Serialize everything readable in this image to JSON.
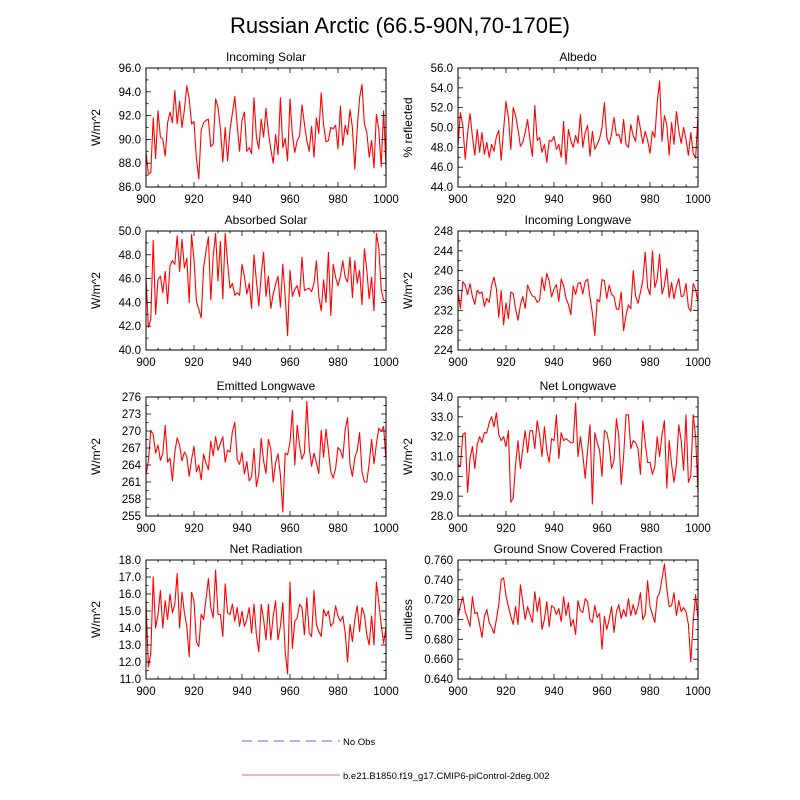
{
  "title": "Russian Arctic (66.5-90N,70-170E)",
  "colors": {
    "model_line": "#ff0000",
    "obs_line": "#9999ee",
    "axis": "#000000"
  },
  "legend": {
    "entries": [
      {
        "label": "No Obs",
        "style": "dashed",
        "color": "#9999ee"
      },
      {
        "label": "b.e21.B1850.f19_g17.CMIP6-piControl-2deg.002",
        "style": "solid",
        "color": "#ff9a9a"
      }
    ]
  },
  "chart_data": [
    {
      "type": "line",
      "title": "Incoming Solar",
      "ylabel": "W/m^2",
      "xlabel": "",
      "xlim": [
        900,
        1000
      ],
      "ylim": [
        86,
        96
      ],
      "xticks": [
        "900",
        "920",
        "940",
        "960",
        "980",
        "1000"
      ],
      "yticks": [
        "86.0",
        "88.0",
        "90.0",
        "92.0",
        "94.0",
        "96.0"
      ],
      "x_start": 900,
      "values": [
        88.9,
        87.1,
        87.2,
        91.8,
        88.4,
        92.4,
        90.2,
        90.0,
        88.6,
        91.4,
        92.3,
        91.4,
        94.1,
        91.3,
        93.2,
        91.0,
        92.5,
        94.5,
        93.4,
        91.3,
        91.5,
        88.4,
        86.7,
        90.8,
        91.4,
        91.6,
        91.7,
        89.4,
        89.6,
        93.4,
        92.7,
        90.9,
        88.1,
        91.0,
        88.2,
        90.8,
        92.2,
        93.6,
        91.2,
        89.0,
        91.6,
        92.3,
        89.0,
        89.3,
        88.8,
        93.5,
        90.2,
        89.2,
        91.7,
        90.2,
        92.6,
        90.6,
        89.2,
        88.0,
        90.4,
        88.7,
        93.5,
        89.3,
        90.1,
        88.2,
        93.4,
        90.4,
        88.9,
        89.9,
        90.3,
        92.9,
        91.3,
        89.9,
        89.0,
        91.1,
        88.5,
        91.8,
        90.5,
        93.9,
        91.2,
        89.8,
        89.9,
        91.0,
        90.9,
        91.2,
        89.2,
        92.8,
        89.5,
        91.2,
        90.4,
        92.5,
        91.0,
        87.5,
        90.9,
        93.5,
        94.6,
        91.3,
        90.6,
        88.5,
        89.9,
        87.6,
        92.1,
        90.8,
        87.7,
        92.4,
        87.7
      ]
    },
    {
      "type": "line",
      "title": "Albedo",
      "ylabel": "% reflected",
      "xlabel": "",
      "xlim": [
        900,
        1000
      ],
      "ylim": [
        44,
        56
      ],
      "xticks": [
        "900",
        "920",
        "940",
        "960",
        "980",
        "1000"
      ],
      "yticks": [
        "44.0",
        "46.0",
        "48.0",
        "50.0",
        "52.0",
        "54.0",
        "56.0"
      ],
      "x_start": 900,
      "values": [
        48.2,
        51.5,
        50.2,
        46.8,
        49.4,
        51.4,
        49.1,
        47.2,
        49.8,
        47.5,
        49.5,
        47.3,
        48.5,
        47.0,
        48.3,
        47.6,
        49.1,
        49.7,
        46.7,
        49.8,
        52.6,
        51.0,
        47.8,
        52.0,
        51.2,
        49.8,
        48.1,
        48.5,
        49.5,
        50.8,
        48.7,
        47.1,
        52.2,
        48.7,
        49.0,
        47.5,
        48.3,
        46.5,
        48.7,
        48.6,
        49.1,
        47.8,
        48.3,
        47.0,
        50.6,
        46.3,
        49.8,
        48.7,
        48.0,
        49.2,
        48.4,
        51.3,
        48.0,
        49.5,
        50.2,
        47.1,
        49.6,
        47.8,
        48.3,
        48.9,
        50.0,
        52.5,
        49.0,
        48.3,
        49.4,
        51.0,
        49.2,
        49.3,
        48.4,
        50.8,
        48.3,
        48.0,
        50.3,
        49.2,
        48.6,
        51.2,
        49.9,
        48.4,
        49.6,
        48.7,
        47.4,
        49.6,
        49.0,
        52.5,
        54.7,
        48.6,
        51.2,
        50.3,
        47.2,
        50.5,
        48.3,
        51.6,
        49.7,
        48.4,
        50.0,
        48.8,
        47.2,
        49.5,
        47.4,
        46.9,
        51.3
      ]
    },
    {
      "type": "line",
      "title": "Absorbed Solar",
      "ylabel": "W/m^2",
      "xlabel": "",
      "xlim": [
        900,
        1000
      ],
      "ylim": [
        40,
        50
      ],
      "xticks": [
        "900",
        "920",
        "940",
        "960",
        "980",
        "1000"
      ],
      "yticks": [
        "40.0",
        "42.0",
        "44.0",
        "46.0",
        "48.0",
        "50.0"
      ],
      "x_start": 900,
      "values": [
        46.1,
        41.9,
        42.6,
        49.2,
        43.0,
        45.9,
        46.2,
        44.8,
        46.6,
        43.9,
        47.1,
        47.5,
        47.2,
        49.6,
        46.6,
        49.3,
        46.9,
        47.7,
        44.0,
        49.7,
        47.6,
        44.1,
        43.4,
        42.7,
        46.9,
        48.3,
        49.5,
        44.2,
        47.9,
        49.8,
        45.8,
        49.1,
        44.3,
        49.8,
        47.3,
        45.2,
        45.6,
        44.6,
        44.8,
        44.6,
        47.2,
        46.2,
        44.7,
        45.6,
        43.5,
        48.0,
        45.8,
        43.7,
        46.3,
        48.2,
        44.5,
        46.2,
        43.5,
        44.7,
        45.5,
        46.2,
        43.6,
        47.2,
        44.5,
        41.2,
        46.7,
        44.5,
        45.1,
        45.4,
        44.5,
        47.8,
        45.0,
        45.1,
        45.2,
        44.9,
        45.6,
        47.5,
        44.5,
        43.3,
        45.9,
        44.0,
        48.2,
        42.9,
        47.2,
        46.1,
        45.4,
        46.2,
        47.5,
        46.1,
        45.7,
        47.8,
        44.4,
        47.5,
        45.6,
        46.7,
        43.8,
        48.5,
        46.7,
        44.3,
        46.1,
        43.3,
        49.8,
        48.6,
        45.1,
        44.2,
        44.1
      ]
    },
    {
      "type": "line",
      "title": "Incoming Longwave",
      "ylabel": "W/m^2",
      "xlabel": "",
      "xlim": [
        900,
        1000
      ],
      "ylim": [
        224,
        248
      ],
      "xticks": [
        "900",
        "920",
        "940",
        "960",
        "980",
        "1000"
      ],
      "yticks": [
        "224",
        "228",
        "232",
        "236",
        "240",
        "244",
        "248"
      ],
      "x_start": 900,
      "values": [
        235.6,
        232.4,
        237.8,
        237.1,
        235.2,
        237.4,
        234.8,
        233.2,
        236.1,
        235.4,
        235.7,
        232.8,
        234.4,
        233.6,
        237.0,
        238.7,
        236.3,
        230.6,
        236.0,
        229.1,
        233.5,
        230.3,
        235.7,
        235.4,
        232.3,
        230.0,
        233.1,
        234.8,
        232.4,
        237.1,
        235.8,
        234.9,
        234.7,
        233.6,
        234.0,
        238.6,
        236.0,
        239.5,
        237.9,
        234.7,
        236.3,
        237.2,
        233.8,
        238.3,
        237.0,
        234.4,
        233.2,
        231.1,
        236.9,
        235.2,
        237.4,
        237.6,
        235.3,
        237.8,
        238.3,
        234.6,
        231.4,
        226.9,
        234.2,
        233.7,
        238.2,
        238.0,
        234.4,
        237.1,
        235.2,
        234.8,
        232.3,
        232.2,
        235.7,
        227.9,
        231.0,
        233.1,
        232.3,
        240.0,
        234.9,
        233.4,
        235.6,
        238.0,
        243.7,
        236.6,
        235.1,
        244.0,
        236.6,
        238.3,
        243.3,
        235.3,
        237.0,
        240.4,
        234.6,
        237.6,
        234.3,
        236.8,
        238.4,
        234.8,
        234.9,
        237.4,
        232.6,
        231.8,
        237.4,
        236.2,
        233.6
      ]
    },
    {
      "type": "line",
      "title": "Emitted Longwave",
      "ylabel": "W/m^2",
      "xlabel": "",
      "xlim": [
        900,
        1000
      ],
      "ylim": [
        255,
        276
      ],
      "xticks": [
        "900",
        "920",
        "940",
        "960",
        "980",
        "1000"
      ],
      "yticks": [
        "255",
        "258",
        "261",
        "264",
        "267",
        "270",
        "273",
        "276"
      ],
      "x_start": 900,
      "values": [
        262.3,
        264.7,
        270.1,
        269.4,
        266.1,
        267.5,
        264.8,
        266.0,
        271.0,
        264.5,
        265.2,
        261.2,
        266.3,
        268.8,
        267.5,
        264.7,
        266.3,
        265.5,
        262.0,
        265.0,
        267.3,
        262.8,
        264.0,
        261.4,
        265.9,
        264.3,
        263.2,
        268.2,
        265.6,
        269.0,
        266.6,
        267.8,
        269.0,
        264.5,
        266.6,
        266.3,
        269.9,
        271.5,
        265.0,
        264.1,
        266.2,
        262.4,
        264.6,
        261.2,
        261.9,
        266.9,
        260.2,
        262.3,
        268.7,
        264.7,
        262.5,
        268.5,
        266.8,
        261.0,
        264.4,
        266.0,
        262.2,
        255.7,
        266.1,
        265.8,
        268.0,
        273.6,
        264.0,
        271.0,
        267.4,
        265.0,
        266.1,
        275.2,
        267.1,
        263.8,
        266.1,
        264.4,
        262.5,
        270.1,
        265.4,
        270.3,
        266.6,
        262.8,
        261.7,
        263.4,
        267.1,
        266.6,
        265.2,
        270.3,
        272.3,
        264.1,
        262.0,
        265.3,
        266.5,
        269.7,
        262.8,
        261.0,
        261.0,
        264.3,
        268.5,
        264.2,
        267.7,
        270.5,
        269.9,
        270.8,
        264.8
      ]
    },
    {
      "type": "line",
      "title": "Net Longwave",
      "ylabel": "W/m^2",
      "xlabel": "",
      "xlim": [
        900,
        1000
      ],
      "ylim": [
        28,
        34
      ],
      "xticks": [
        "900",
        "920",
        "940",
        "960",
        "980",
        "1000"
      ],
      "yticks": [
        "28.0",
        "29.0",
        "30.0",
        "31.0",
        "32.0",
        "33.0",
        "34.0"
      ],
      "x_start": 900,
      "values": [
        30.6,
        30.5,
        32.1,
        32.2,
        29.2,
        30.9,
        31.5,
        30.4,
        31.6,
        32.0,
        31.7,
        32.2,
        32.2,
        32.7,
        33.0,
        32.5,
        33.2,
        32.1,
        31.8,
        32.0,
        31.5,
        32.3,
        28.7,
        28.9,
        30.6,
        31.8,
        30.4,
        31.4,
        32.3,
        31.2,
        32.3,
        32.3,
        31.4,
        32.8,
        32.1,
        31.0,
        32.5,
        31.3,
        30.7,
        31.9,
        31.8,
        33.1,
        30.9,
        32.2,
        31.8,
        31.9,
        31.8,
        31.7,
        31.7,
        33.7,
        31.0,
        32.0,
        31.1,
        29.9,
        31.3,
        32.6,
        28.6,
        32.2,
        31.7,
        31.3,
        30.0,
        32.3,
        32.2,
        31.6,
        30.4,
        30.8,
        32.9,
        32.0,
        29.6,
        31.0,
        33.1,
        33.1,
        31.4,
        31.8,
        31.7,
        31.4,
        30.1,
        32.8,
        31.7,
        30.7,
        30.7,
        30.1,
        30.5,
        32.0,
        31.0,
        32.1,
        32.8,
        29.4,
        31.8,
        30.6,
        29.7,
        30.6,
        32.6,
        31.8,
        30.3,
        33.1,
        29.7,
        30.0,
        33.1,
        32.0,
        29.2
      ]
    },
    {
      "type": "line",
      "title": "Net Radiation",
      "ylabel": "W/m^2",
      "xlabel": "",
      "xlim": [
        900,
        1000
      ],
      "ylim": [
        11,
        18
      ],
      "xticks": [
        "900",
        "920",
        "940",
        "960",
        "980",
        "1000"
      ],
      "yticks": [
        "11.0",
        "12.0",
        "13.0",
        "14.0",
        "15.0",
        "16.0",
        "17.0",
        "18.0"
      ],
      "x_start": 900,
      "values": [
        15.5,
        11.7,
        12.5,
        17.0,
        14.0,
        14.8,
        16.2,
        14.0,
        15.6,
        14.5,
        16.0,
        14.9,
        15.4,
        17.2,
        14.0,
        16.1,
        14.9,
        14.1,
        12.3,
        16.1,
        15.6,
        13.2,
        12.9,
        14.8,
        14.5,
        15.7,
        16.9,
        15.2,
        14.6,
        17.4,
        14.8,
        14.8,
        13.5,
        16.6,
        14.9,
        14.8,
        15.4,
        14.4,
        15.2,
        14.1,
        15.0,
        14.1,
        14.5,
        15.2,
        13.7,
        15.4,
        13.6,
        12.6,
        15.4,
        14.5,
        13.3,
        15.4,
        13.3,
        14.7,
        15.6,
        13.3,
        14.1,
        15.5,
        12.6,
        11.3,
        16.7,
        12.8,
        14.4,
        14.6,
        15.4,
        15.2,
        13.6,
        15.8,
        13.7,
        13.5,
        16.2,
        14.2,
        13.8,
        13.5,
        15.1,
        14.7,
        15.0,
        14.1,
        14.3,
        15.3,
        14.7,
        14.4,
        14.7,
        13.7,
        12.0,
        14.2,
        13.2,
        14.5,
        15.3,
        13.8,
        15.2,
        14.8,
        13.6,
        13.0,
        14.7,
        13.0,
        16.7,
        15.5,
        14.2,
        13.1,
        14.0
      ]
    },
    {
      "type": "line",
      "title": "Ground Snow Covered Fraction",
      "ylabel": "unitless",
      "xlabel": "",
      "xlim": [
        900,
        1000
      ],
      "ylim": [
        0.64,
        0.76
      ],
      "xticks": [
        "900",
        "920",
        "940",
        "960",
        "980",
        "1000"
      ],
      "yticks": [
        "0.640",
        "0.660",
        "0.680",
        "0.700",
        "0.720",
        "0.740",
        "0.760"
      ],
      "x_start": 900,
      "values": [
        0.703,
        0.714,
        0.723,
        0.708,
        0.701,
        0.693,
        0.723,
        0.706,
        0.707,
        0.695,
        0.682,
        0.703,
        0.71,
        0.697,
        0.692,
        0.686,
        0.7,
        0.715,
        0.74,
        0.742,
        0.724,
        0.713,
        0.703,
        0.695,
        0.713,
        0.695,
        0.735,
        0.718,
        0.7,
        0.713,
        0.705,
        0.697,
        0.728,
        0.708,
        0.722,
        0.69,
        0.7,
        0.718,
        0.693,
        0.714,
        0.712,
        0.705,
        0.711,
        0.698,
        0.723,
        0.704,
        0.717,
        0.693,
        0.7,
        0.685,
        0.719,
        0.709,
        0.707,
        0.721,
        0.718,
        0.7,
        0.697,
        0.714,
        0.702,
        0.706,
        0.67,
        0.703,
        0.69,
        0.7,
        0.713,
        0.687,
        0.708,
        0.715,
        0.701,
        0.71,
        0.703,
        0.721,
        0.704,
        0.715,
        0.705,
        0.713,
        0.727,
        0.7,
        0.705,
        0.739,
        0.713,
        0.705,
        0.697,
        0.722,
        0.727,
        0.741,
        0.756,
        0.731,
        0.713,
        0.714,
        0.727,
        0.704,
        0.719,
        0.708,
        0.712,
        0.708,
        0.695,
        0.657,
        0.698,
        0.725,
        0.7
      ]
    }
  ]
}
